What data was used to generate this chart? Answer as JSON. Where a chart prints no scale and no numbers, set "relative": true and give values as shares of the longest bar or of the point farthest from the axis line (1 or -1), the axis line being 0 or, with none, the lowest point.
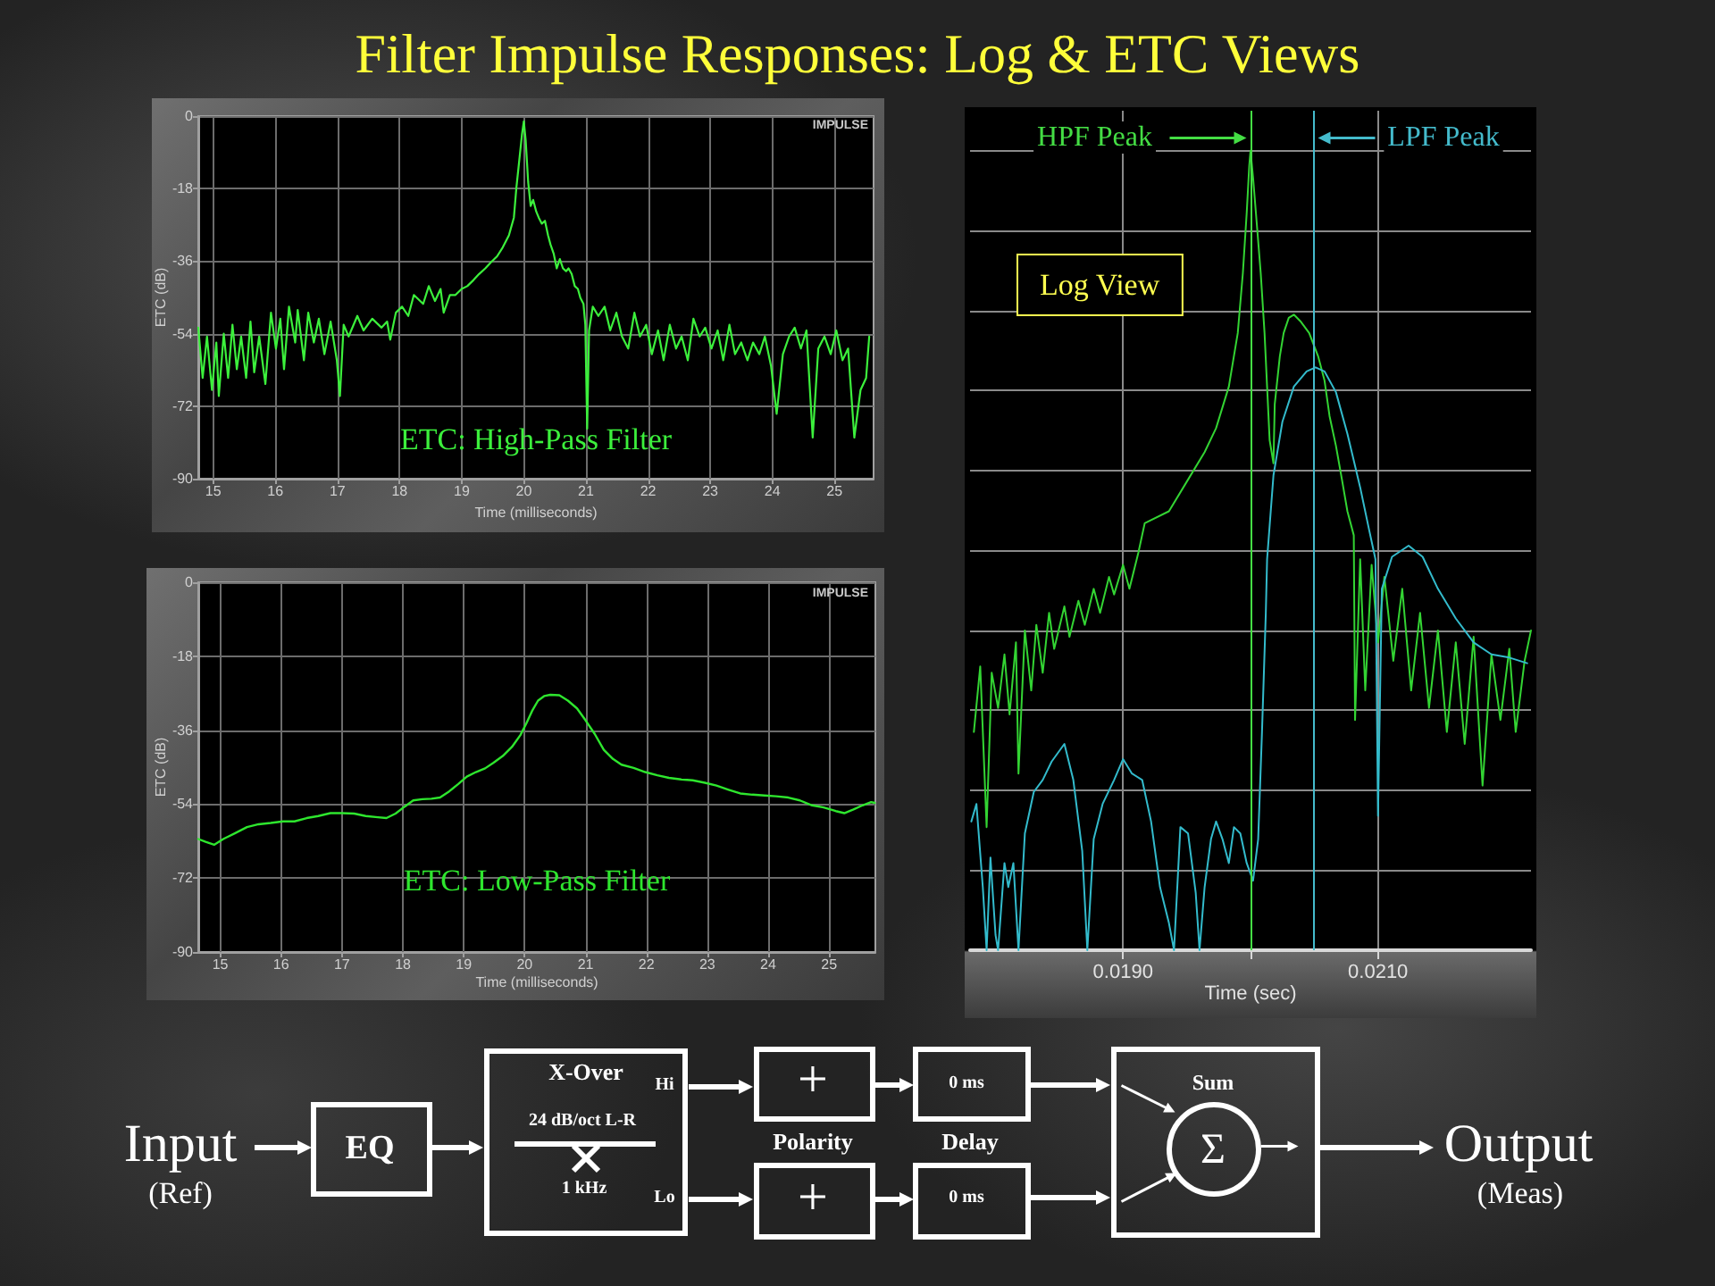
{
  "chart_data": [
    {
      "type": "other",
      "title": "Filter Impulse Responses: Log & ETC Views"
    },
    {
      "type": "line",
      "title": "ETC: High-Pass Filter",
      "xlabel": "Time (milliseconds)",
      "ylabel": "ETC (dB)",
      "annotations": [
        "IMPULSE"
      ],
      "color": "#3cf03c",
      "grid": true,
      "marker": "none",
      "xlim": [
        14.76,
        25.63
      ],
      "xticks": [
        15,
        16,
        17,
        18,
        19,
        20,
        21,
        22,
        23,
        24,
        25
      ],
      "ylim": [
        -90,
        0
      ],
      "yticks": [
        -90,
        -72,
        -54,
        -36,
        -18,
        0
      ],
      "x": [
        14.76,
        14.83,
        14.9,
        14.98,
        15.05,
        15.09,
        15.17,
        15.24,
        15.31,
        15.38,
        15.45,
        15.53,
        15.6,
        15.66,
        15.74,
        15.84,
        15.93,
        16.01,
        16.08,
        16.14,
        16.22,
        16.32,
        16.36,
        16.46,
        16.53,
        16.62,
        16.7,
        16.79,
        16.89,
        16.99,
        17.04,
        17.1,
        17.18,
        17.32,
        17.42,
        17.56,
        17.71,
        17.8,
        17.85,
        17.94,
        18.04,
        18.14,
        18.23,
        18.38,
        18.47,
        18.57,
        18.66,
        18.71,
        18.81,
        18.9,
        19.0,
        19.09,
        19.19,
        19.28,
        19.38,
        19.47,
        19.57,
        19.66,
        19.76,
        19.84,
        19.88,
        19.93,
        19.97,
        20.0,
        20.03,
        20.07,
        20.11,
        20.15,
        20.2,
        20.24,
        20.29,
        20.34,
        20.39,
        20.43,
        20.48,
        20.53,
        20.58,
        20.63,
        20.68,
        20.72,
        20.77,
        20.82,
        20.87,
        20.91,
        20.96,
        20.99,
        21.02,
        21.05,
        21.11,
        21.2,
        21.3,
        21.39,
        21.49,
        21.58,
        21.68,
        21.78,
        21.87,
        21.97,
        22.06,
        22.16,
        22.25,
        22.35,
        22.45,
        22.54,
        22.64,
        22.73,
        22.83,
        22.92,
        23.02,
        23.12,
        23.21,
        23.31,
        23.4,
        23.5,
        23.6,
        23.69,
        23.79,
        23.88,
        23.98,
        24.07,
        24.17,
        24.27,
        24.36,
        24.46,
        24.55,
        24.65,
        24.74,
        24.84,
        24.94,
        25.03,
        25.13,
        25.22,
        25.32,
        25.42,
        25.51,
        25.56
      ],
      "values": [
        -52.5,
        -65.0,
        -54.7,
        -68.0,
        -56.2,
        -69.5,
        -54.0,
        -65.0,
        -51.8,
        -62.8,
        -54.7,
        -65.0,
        -51.0,
        -63.6,
        -54.7,
        -66.5,
        -48.8,
        -57.7,
        -50.3,
        -62.8,
        -47.3,
        -56.2,
        -48.1,
        -60.6,
        -48.8,
        -56.2,
        -50.3,
        -59.1,
        -51.0,
        -60.6,
        -69.5,
        -51.8,
        -54.7,
        -49.6,
        -53.2,
        -50.3,
        -52.5,
        -51.0,
        -55.5,
        -48.8,
        -47.3,
        -49.6,
        -44.4,
        -46.6,
        -42.2,
        -45.9,
        -42.9,
        -48.8,
        -44.4,
        -44.4,
        -42.9,
        -42.2,
        -40.7,
        -39.2,
        -37.8,
        -36.3,
        -34.8,
        -32.6,
        -29.6,
        -25.2,
        -17.8,
        -10.5,
        -4.6,
        -1.3,
        -6.0,
        -16.4,
        -22.3,
        -20.8,
        -23.7,
        -25.2,
        -26.7,
        -26.0,
        -29.6,
        -31.9,
        -34.1,
        -37.8,
        -35.5,
        -37.8,
        -38.5,
        -37.8,
        -39.2,
        -42.2,
        -42.9,
        -45.1,
        -46.6,
        -51.8,
        -77.6,
        -53.2,
        -47.3,
        -49.6,
        -47.3,
        -53.2,
        -48.8,
        -54.7,
        -57.7,
        -48.8,
        -54.7,
        -51.8,
        -59.1,
        -53.2,
        -60.6,
        -51.8,
        -57.7,
        -54.7,
        -60.6,
        -50.3,
        -54.7,
        -52.5,
        -57.7,
        -53.2,
        -60.6,
        -51.8,
        -59.1,
        -56.2,
        -60.6,
        -56.2,
        -59.1,
        -54.7,
        -62.1,
        -73.9,
        -59.1,
        -54.7,
        -52.5,
        -57.7,
        -53.2,
        -79.8,
        -57.7,
        -54.7,
        -59.1,
        -53.2,
        -60.6,
        -57.7,
        -79.8,
        -68.0,
        -65.0,
        -54.7
      ]
    },
    {
      "type": "line",
      "xlabel": "Time (sec)",
      "annotations": [
        "Log View"
      ],
      "relative": true,
      "grid": true,
      "marker": "none",
      "xlim": [
        0.0178,
        0.0222
      ],
      "xticks": [
        {
          "value": 0.019,
          "label": "0.0190"
        },
        {
          "value": 0.02,
          "label": null
        },
        {
          "value": 0.021,
          "label": "0.0210"
        }
      ],
      "ref_lines": [
        {
          "axis": "x",
          "value": 0.02,
          "label": "HPF Peak",
          "color": "#44dd44"
        },
        {
          "axis": "x",
          "value": 0.0205,
          "label": "LPF Peak",
          "color": "#44bbcc"
        }
      ],
      "series": [
        {
          "color": "#33d433",
          "x": [
            0.01783,
            0.01788,
            0.01793,
            0.01797,
            0.01802,
            0.01807,
            0.01811,
            0.01816,
            0.01818,
            0.01823,
            0.01828,
            0.01832,
            0.01837,
            0.01842,
            0.01846,
            0.01854,
            0.01858,
            0.01865,
            0.0187,
            0.01877,
            0.01882,
            0.01889,
            0.01893,
            0.019,
            0.01905,
            0.01912,
            0.01917,
            0.01936,
            0.0195,
            0.01964,
            0.01973,
            0.01983,
            0.0199,
            0.01994,
            0.01997,
            0.01999,
            0.02,
            0.02002,
            0.02005,
            0.02008,
            0.02011,
            0.02013,
            0.02015,
            0.02018,
            0.02019,
            0.02023,
            0.02026,
            0.0203,
            0.02034,
            0.02039,
            0.02046,
            0.02053,
            0.02058,
            0.02062,
            0.02067,
            0.02072,
            0.02076,
            0.02081,
            0.02082,
            0.02086,
            0.0209,
            0.02095,
            0.021,
            0.02105,
            0.02112,
            0.02119,
            0.02126,
            0.02133,
            0.0214,
            0.02147,
            0.02154,
            0.02161,
            0.02168,
            0.02175,
            0.02182,
            0.02189,
            0.02196,
            0.02203,
            0.02208,
            0.02215,
            0.0222
          ],
          "values": [
            0.273,
            0.355,
            0.154,
            0.347,
            0.303,
            0.37,
            0.295,
            0.385,
            0.221,
            0.4,
            0.325,
            0.407,
            0.347,
            0.422,
            0.377,
            0.43,
            0.392,
            0.437,
            0.407,
            0.452,
            0.422,
            0.467,
            0.445,
            0.482,
            0.452,
            0.497,
            0.534,
            0.549,
            0.586,
            0.623,
            0.653,
            0.705,
            0.772,
            0.847,
            0.922,
            0.981,
            1,
            0.966,
            0.907,
            0.847,
            0.772,
            0.705,
            0.638,
            0.609,
            0.683,
            0.743,
            0.772,
            0.791,
            0.795,
            0.787,
            0.772,
            0.743,
            0.713,
            0.668,
            0.631,
            0.586,
            0.549,
            0.519,
            0.288,
            0.489,
            0.325,
            0.482,
            0.385,
            0.467,
            0.362,
            0.452,
            0.325,
            0.422,
            0.303,
            0.4,
            0.273,
            0.385,
            0.258,
            0.392,
            0.206,
            0.37,
            0.288,
            0.377,
            0.273,
            0.362,
            0.4
          ]
        },
        {
          "color": "#33bbcc",
          "x": [
            0.01781,
            0.01785,
            0.0179,
            0.01793,
            0.01796,
            0.018,
            0.01802,
            0.01807,
            0.0181,
            0.01814,
            0.01818,
            0.01823,
            0.0183,
            0.01837,
            0.01844,
            0.01854,
            0.01861,
            0.01868,
            0.01872,
            0.01877,
            0.01884,
            0.01893,
            0.019,
            0.01907,
            0.01915,
            0.01922,
            0.01929,
            0.01936,
            0.0194,
            0.01945,
            0.01951,
            0.01957,
            0.0196,
            0.01964,
            0.01969,
            0.01973,
            0.01978,
            0.01983,
            0.01987,
            0.01992,
            0.01997,
            0.02002,
            0.02006,
            0.02009,
            0.02012,
            0.02013,
            0.02018,
            0.02025,
            0.02034,
            0.02044,
            0.02051,
            0.02058,
            0.02067,
            0.02076,
            0.02086,
            0.02093,
            0.02098,
            0.021,
            0.02103,
            0.02111,
            0.02124,
            0.02135,
            0.02147,
            0.02161,
            0.02175,
            0.02189,
            0.02203,
            0.02217
          ],
          "values": [
            0.161,
            0.183,
            0.079,
            0,
            0.116,
            0.019,
            0,
            0.109,
            0.079,
            0.109,
            0,
            0.146,
            0.198,
            0.213,
            0.236,
            0.258,
            0.213,
            0.124,
            0,
            0.139,
            0.183,
            0.213,
            0.239,
            0.221,
            0.213,
            0.161,
            0.079,
            0.034,
            0,
            0.154,
            0.146,
            0.072,
            0,
            0.079,
            0.139,
            0.161,
            0.139,
            0.109,
            0.154,
            0.146,
            0.109,
            0.087,
            0.139,
            0.273,
            0.422,
            0.489,
            0.594,
            0.661,
            0.705,
            0.724,
            0.729,
            0.724,
            0.698,
            0.646,
            0.579,
            0.526,
            0.489,
            0.168,
            0.452,
            0.492,
            0.506,
            0.492,
            0.452,
            0.415,
            0.385,
            0.37,
            0.366,
            0.359
          ]
        }
      ]
    },
    {
      "type": "line",
      "title": "ETC: Low-Pass Filter",
      "xlabel": "Time (milliseconds)",
      "ylabel": "ETC (dB)",
      "annotations": [
        "IMPULSE"
      ],
      "color": "#2ee62e",
      "grid": true,
      "marker": "none",
      "xlim": [
        14.64,
        25.76
      ],
      "xticks": [
        15,
        16,
        17,
        18,
        19,
        20,
        21,
        22,
        23,
        24,
        25
      ],
      "ylim": [
        -90,
        0
      ],
      "yticks": [
        -90,
        -72,
        -54,
        -36,
        -18,
        0
      ],
      "x": [
        14.64,
        14.76,
        14.9,
        15.05,
        15.24,
        15.44,
        15.63,
        15.83,
        16.03,
        16.22,
        16.42,
        16.61,
        16.81,
        17.0,
        17.2,
        17.39,
        17.59,
        17.73,
        17.88,
        18.03,
        18.17,
        18.32,
        18.47,
        18.61,
        18.76,
        18.91,
        19.05,
        19.2,
        19.35,
        19.49,
        19.64,
        19.79,
        19.93,
        20.03,
        20.13,
        20.22,
        20.32,
        20.42,
        20.57,
        20.71,
        20.86,
        21.0,
        21.15,
        21.3,
        21.45,
        21.59,
        21.79,
        21.98,
        22.18,
        22.37,
        22.57,
        22.76,
        22.96,
        23.15,
        23.35,
        23.54,
        23.74,
        23.94,
        24.13,
        24.33,
        24.52,
        24.72,
        24.91,
        25.11,
        25.25,
        25.4,
        25.55,
        25.69,
        25.75
      ],
      "values": [
        -62.5,
        -63.2,
        -63.9,
        -62.5,
        -61.1,
        -59.6,
        -58.9,
        -58.6,
        -58.2,
        -58.2,
        -57.4,
        -56.9,
        -56.2,
        -56.2,
        -56.3,
        -56.9,
        -57.2,
        -57.4,
        -56.3,
        -54.6,
        -53.1,
        -52.8,
        -52.7,
        -52.4,
        -50.9,
        -49.1,
        -47.3,
        -46.2,
        -45.3,
        -43.9,
        -42.3,
        -40.1,
        -37.2,
        -34.3,
        -31.1,
        -28.8,
        -27.7,
        -27.4,
        -27.5,
        -28.8,
        -30.7,
        -33.6,
        -36.9,
        -40.8,
        -43.0,
        -44.4,
        -45.2,
        -46.2,
        -47.0,
        -47.6,
        -48.0,
        -48.2,
        -48.8,
        -49.5,
        -50.5,
        -51.4,
        -51.7,
        -51.9,
        -52.1,
        -52.4,
        -53.1,
        -54.3,
        -54.8,
        -55.7,
        -56.2,
        -55.3,
        -54.3,
        -53.5,
        -53.7
      ]
    },
    {
      "type": "other",
      "annotations": [
        "Input",
        "(Ref)",
        "EQ",
        "X-Over",
        "Hi",
        "24 dB/oct L-R",
        "1 kHz",
        "Lo",
        "+",
        "Polarity",
        "+",
        "0 ms",
        "Delay",
        "0 ms",
        "Sum",
        "Σ",
        "Output",
        "(Meas)"
      ]
    }
  ]
}
